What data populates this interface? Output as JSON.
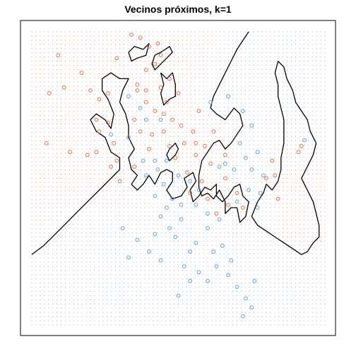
{
  "chart_data": {
    "type": "scatter",
    "title": "Vecinos próximos, k=1",
    "xlabel": "",
    "ylabel": "",
    "xlim": [
      0,
      1
    ],
    "ylim": [
      0,
      1
    ],
    "axes_shown": false,
    "grid": "dotted background grid colored by predicted class",
    "colors": {
      "class_orange": "#e2724f",
      "class_blue": "#6a9fd0",
      "boundary": "#000000",
      "frame": "#000000"
    },
    "series": [
      {
        "class": "orange",
        "points": [
          [
            0.34,
            0.99
          ],
          [
            0.37,
            0.98
          ],
          [
            0.43,
            0.96
          ],
          [
            0.4,
            0.95
          ],
          [
            0.09,
            0.92
          ],
          [
            0.17,
            0.86
          ],
          [
            0.29,
            0.91
          ],
          [
            0.44,
            0.92
          ],
          [
            0.11,
            0.81
          ],
          [
            0.2,
            0.8
          ],
          [
            0.06,
            0.79
          ],
          [
            0.26,
            0.79
          ],
          [
            0.23,
            0.77
          ],
          [
            0.42,
            0.89
          ],
          [
            0.39,
            0.87
          ],
          [
            0.47,
            0.84
          ],
          [
            0.39,
            0.8
          ],
          [
            0.44,
            0.81
          ],
          [
            0.36,
            0.8
          ],
          [
            0.5,
            0.79
          ],
          [
            0.22,
            0.7
          ],
          [
            0.26,
            0.69
          ],
          [
            0.23,
            0.66
          ],
          [
            0.28,
            0.62
          ],
          [
            0.19,
            0.58
          ],
          [
            0.05,
            0.62
          ],
          [
            0.13,
            0.59
          ],
          [
            0.29,
            0.56
          ],
          [
            0.22,
            0.59
          ],
          [
            0.36,
            0.82
          ],
          [
            0.39,
            0.76
          ],
          [
            0.42,
            0.73
          ],
          [
            0.45,
            0.72
          ],
          [
            0.48,
            0.7
          ],
          [
            0.51,
            0.68
          ],
          [
            0.55,
            0.66
          ],
          [
            0.57,
            0.73
          ],
          [
            0.46,
            0.76
          ],
          [
            0.35,
            0.7
          ],
          [
            0.37,
            0.66
          ],
          [
            0.41,
            0.65
          ],
          [
            0.45,
            0.66
          ],
          [
            0.4,
            0.6
          ],
          [
            0.47,
            0.61
          ],
          [
            0.49,
            0.57
          ],
          [
            0.52,
            0.62
          ],
          [
            0.56,
            0.62
          ],
          [
            0.56,
            0.58
          ],
          [
            0.59,
            0.61
          ],
          [
            0.61,
            0.55
          ],
          [
            0.66,
            0.58
          ],
          [
            0.62,
            0.66
          ],
          [
            0.66,
            0.5
          ],
          [
            0.7,
            0.45
          ],
          [
            0.67,
            0.41
          ],
          [
            0.58,
            0.49
          ],
          [
            0.6,
            0.43
          ],
          [
            0.54,
            0.45
          ],
          [
            0.63,
            0.38
          ],
          [
            0.72,
            0.4
          ],
          [
            0.27,
            0.54
          ],
          [
            0.3,
            0.49
          ],
          [
            0.35,
            0.54
          ],
          [
            0.82,
            0.56
          ],
          [
            0.83,
            0.51
          ],
          [
            0.91,
            0.59
          ],
          [
            0.92,
            0.61
          ],
          [
            0.8,
            0.5
          ],
          [
            0.84,
            0.43
          ],
          [
            0.53,
            0.52
          ]
        ]
      },
      {
        "class": "blue",
        "points": [
          [
            0.33,
            0.78
          ],
          [
            0.37,
            0.74
          ],
          [
            0.39,
            0.7
          ],
          [
            0.44,
            0.7
          ],
          [
            0.61,
            0.76
          ],
          [
            0.67,
            0.78
          ],
          [
            0.72,
            0.73
          ],
          [
            0.75,
            0.68
          ],
          [
            0.71,
            0.62
          ],
          [
            0.66,
            0.55
          ],
          [
            0.73,
            0.57
          ],
          [
            0.77,
            0.59
          ],
          [
            0.75,
            0.53
          ],
          [
            0.69,
            0.53
          ],
          [
            0.64,
            0.54
          ],
          [
            0.74,
            0.46
          ],
          [
            0.79,
            0.51
          ],
          [
            0.78,
            0.45
          ],
          [
            0.7,
            0.42
          ],
          [
            0.77,
            0.4
          ],
          [
            0.38,
            0.56
          ],
          [
            0.42,
            0.56
          ],
          [
            0.46,
            0.56
          ],
          [
            0.43,
            0.53
          ],
          [
            0.39,
            0.51
          ],
          [
            0.45,
            0.48
          ],
          [
            0.5,
            0.51
          ],
          [
            0.54,
            0.49
          ],
          [
            0.57,
            0.46
          ],
          [
            0.48,
            0.43
          ],
          [
            0.51,
            0.41
          ],
          [
            0.46,
            0.4
          ],
          [
            0.42,
            0.44
          ],
          [
            0.56,
            0.41
          ],
          [
            0.6,
            0.38
          ],
          [
            0.64,
            0.36
          ],
          [
            0.6,
            0.33
          ],
          [
            0.51,
            0.36
          ],
          [
            0.47,
            0.33
          ],
          [
            0.44,
            0.37
          ],
          [
            0.42,
            0.31
          ],
          [
            0.49,
            0.3
          ],
          [
            0.56,
            0.28
          ],
          [
            0.31,
            0.33
          ],
          [
            0.36,
            0.29
          ],
          [
            0.4,
            0.25
          ],
          [
            0.33,
            0.23
          ],
          [
            0.54,
            0.25
          ],
          [
            0.62,
            0.25
          ],
          [
            0.63,
            0.2
          ],
          [
            0.57,
            0.18
          ],
          [
            0.52,
            0.2
          ],
          [
            0.54,
            0.15
          ],
          [
            0.6,
            0.15
          ],
          [
            0.67,
            0.17
          ],
          [
            0.7,
            0.13
          ],
          [
            0.73,
            0.09
          ],
          [
            0.75,
            0.06
          ],
          [
            0.72,
            0.03
          ],
          [
            0.76,
            0.15
          ],
          [
            0.68,
            0.22
          ],
          [
            0.65,
            0.27
          ],
          [
            0.44,
            0.22
          ],
          [
            0.5,
            0.1
          ],
          [
            0.93,
            0.63
          ],
          [
            0.33,
            0.64
          ],
          [
            0.27,
            0.65
          ]
        ]
      }
    ],
    "boundary_paths": [
      [
        [
          0.0,
          0.24
        ],
        [
          0.04,
          0.27
        ],
        [
          0.08,
          0.31
        ],
        [
          0.12,
          0.35
        ],
        [
          0.16,
          0.39
        ],
        [
          0.2,
          0.43
        ],
        [
          0.24,
          0.47
        ],
        [
          0.27,
          0.5
        ],
        [
          0.3,
          0.53
        ],
        [
          0.3,
          0.57
        ],
        [
          0.27,
          0.59
        ],
        [
          0.25,
          0.64
        ],
        [
          0.22,
          0.66
        ],
        [
          0.2,
          0.7
        ],
        [
          0.22,
          0.72
        ],
        [
          0.25,
          0.7
        ],
        [
          0.27,
          0.67
        ],
        [
          0.28,
          0.72
        ],
        [
          0.26,
          0.77
        ],
        [
          0.24,
          0.8
        ],
        [
          0.24,
          0.84
        ],
        [
          0.27,
          0.86
        ],
        [
          0.3,
          0.84
        ],
        [
          0.33,
          0.84
        ],
        [
          0.31,
          0.8
        ],
        [
          0.3,
          0.76
        ],
        [
          0.32,
          0.72
        ],
        [
          0.33,
          0.68
        ],
        [
          0.33,
          0.64
        ],
        [
          0.35,
          0.6
        ],
        [
          0.33,
          0.57
        ],
        [
          0.34,
          0.53
        ],
        [
          0.36,
          0.51
        ],
        [
          0.34,
          0.48
        ],
        [
          0.36,
          0.46
        ],
        [
          0.38,
          0.48
        ],
        [
          0.4,
          0.51
        ],
        [
          0.42,
          0.48
        ],
        [
          0.44,
          0.52
        ],
        [
          0.46,
          0.53
        ],
        [
          0.48,
          0.52
        ],
        [
          0.48,
          0.49
        ],
        [
          0.46,
          0.46
        ],
        [
          0.48,
          0.43
        ],
        [
          0.51,
          0.44
        ],
        [
          0.53,
          0.47
        ],
        [
          0.52,
          0.5
        ],
        [
          0.55,
          0.52
        ],
        [
          0.56,
          0.49
        ],
        [
          0.54,
          0.46
        ],
        [
          0.55,
          0.42
        ],
        [
          0.57,
          0.44
        ],
        [
          0.59,
          0.47
        ],
        [
          0.61,
          0.46
        ],
        [
          0.63,
          0.48
        ],
        [
          0.63,
          0.44
        ],
        [
          0.65,
          0.42
        ],
        [
          0.67,
          0.44
        ],
        [
          0.69,
          0.47
        ],
        [
          0.71,
          0.48
        ],
        [
          0.72,
          0.44
        ],
        [
          0.74,
          0.42
        ],
        [
          0.73,
          0.37
        ],
        [
          0.71,
          0.35
        ],
        [
          0.7,
          0.4
        ],
        [
          0.68,
          0.4
        ],
        [
          0.66,
          0.38
        ],
        [
          0.66,
          0.42
        ],
        [
          0.64,
          0.46
        ],
        [
          0.62,
          0.43
        ],
        [
          0.6,
          0.45
        ],
        [
          0.58,
          0.44
        ],
        [
          0.57,
          0.47
        ],
        [
          0.57,
          0.51
        ],
        [
          0.58,
          0.56
        ],
        [
          0.6,
          0.59
        ],
        [
          0.62,
          0.62
        ],
        [
          0.64,
          0.63
        ],
        [
          0.66,
          0.6
        ],
        [
          0.68,
          0.62
        ],
        [
          0.7,
          0.65
        ],
        [
          0.72,
          0.68
        ],
        [
          0.71,
          0.72
        ],
        [
          0.69,
          0.74
        ],
        [
          0.66,
          0.7
        ],
        [
          0.63,
          0.72
        ],
        [
          0.61,
          0.74
        ],
        [
          0.62,
          0.78
        ],
        [
          0.64,
          0.82
        ],
        [
          0.66,
          0.86
        ],
        [
          0.68,
          0.9
        ],
        [
          0.7,
          0.94
        ],
        [
          0.72,
          0.97
        ],
        [
          0.74,
          1.0
        ]
      ],
      [
        [
          0.44,
          0.93
        ],
        [
          0.47,
          0.95
        ],
        [
          0.48,
          0.93
        ],
        [
          0.46,
          0.91
        ],
        [
          0.44,
          0.89
        ],
        [
          0.42,
          0.87
        ],
        [
          0.41,
          0.89
        ],
        [
          0.42,
          0.92
        ],
        [
          0.44,
          0.93
        ]
      ],
      [
        [
          0.33,
          0.93
        ],
        [
          0.35,
          0.95
        ],
        [
          0.38,
          0.94
        ],
        [
          0.4,
          0.96
        ],
        [
          0.39,
          0.92
        ],
        [
          0.36,
          0.91
        ],
        [
          0.34,
          0.9
        ],
        [
          0.33,
          0.93
        ]
      ],
      [
        [
          0.44,
          0.86
        ],
        [
          0.46,
          0.84
        ],
        [
          0.48,
          0.86
        ],
        [
          0.49,
          0.82
        ],
        [
          0.49,
          0.78
        ],
        [
          0.47,
          0.77
        ],
        [
          0.45,
          0.75
        ],
        [
          0.44,
          0.79
        ],
        [
          0.45,
          0.82
        ],
        [
          0.44,
          0.86
        ]
      ],
      [
        [
          0.84,
          0.9
        ],
        [
          0.86,
          0.88
        ],
        [
          0.87,
          0.84
        ],
        [
          0.89,
          0.8
        ],
        [
          0.9,
          0.76
        ],
        [
          0.92,
          0.73
        ],
        [
          0.94,
          0.7
        ],
        [
          0.95,
          0.66
        ],
        [
          0.97,
          0.62
        ],
        [
          0.96,
          0.58
        ],
        [
          0.94,
          0.54
        ],
        [
          0.92,
          0.5
        ],
        [
          0.94,
          0.46
        ],
        [
          0.96,
          0.42
        ],
        [
          0.97,
          0.38
        ],
        [
          0.98,
          0.34
        ],
        [
          0.98,
          0.3
        ],
        [
          0.96,
          0.28
        ],
        [
          0.94,
          0.25
        ],
        [
          0.92,
          0.24
        ],
        [
          0.89,
          0.26
        ],
        [
          0.86,
          0.28
        ],
        [
          0.83,
          0.3
        ],
        [
          0.8,
          0.32
        ],
        [
          0.77,
          0.34
        ],
        [
          0.75,
          0.37
        ],
        [
          0.77,
          0.42
        ],
        [
          0.79,
          0.45
        ],
        [
          0.8,
          0.48
        ],
        [
          0.82,
          0.46
        ],
        [
          0.84,
          0.49
        ],
        [
          0.85,
          0.53
        ],
        [
          0.85,
          0.57
        ],
        [
          0.86,
          0.62
        ],
        [
          0.86,
          0.66
        ],
        [
          0.86,
          0.7
        ],
        [
          0.85,
          0.74
        ],
        [
          0.84,
          0.78
        ],
        [
          0.84,
          0.82
        ],
        [
          0.83,
          0.86
        ],
        [
          0.84,
          0.9
        ]
      ],
      [
        [
          0.47,
          0.56
        ],
        [
          0.49,
          0.58
        ],
        [
          0.5,
          0.6
        ],
        [
          0.49,
          0.62
        ],
        [
          0.47,
          0.6
        ],
        [
          0.46,
          0.58
        ],
        [
          0.47,
          0.56
        ]
      ]
    ]
  }
}
